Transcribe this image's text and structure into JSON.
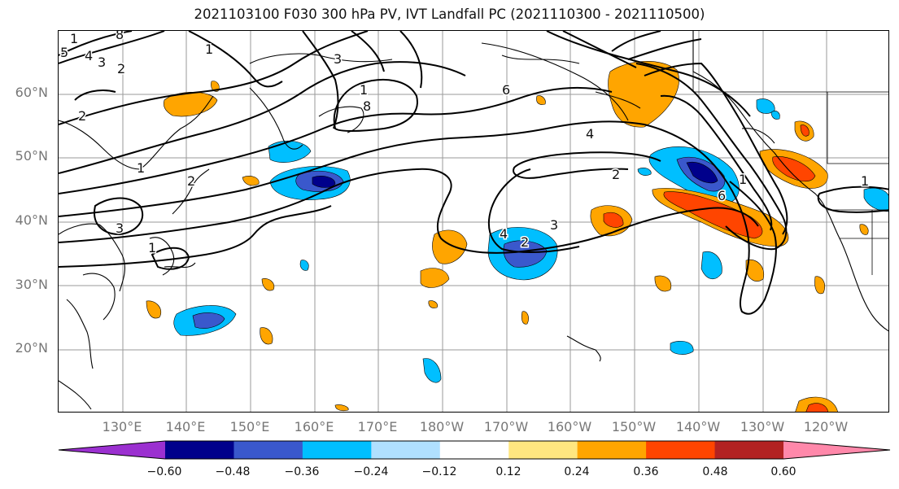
{
  "title": "2021103100 F030 300 hPa PV, IVT Landfall PC (2021110300 - 2021110500)",
  "lat_labels": [
    "60°N",
    "50°N",
    "40°N",
    "30°N",
    "20°N"
  ],
  "lon_labels": [
    "130°E",
    "140°E",
    "150°E",
    "160°E",
    "170°E",
    "180°W",
    "170°W",
    "160°W",
    "150°W",
    "140°W",
    "130°W",
    "120°W"
  ],
  "colorbar": {
    "tick_labels": [
      "−0.60",
      "−0.48",
      "−0.36",
      "−0.24",
      "−0.12",
      "0.12",
      "0.24",
      "0.36",
      "0.48",
      "0.60"
    ],
    "colors": [
      "#9b30d0",
      "#00008b",
      "#3a58cc",
      "#00bfff",
      "#b0e0ff",
      "#ffffff",
      "#ffe680",
      "#ffa500",
      "#ff4500",
      "#b22222",
      "#ff88aa"
    ]
  },
  "contour_labels": [
    "1",
    "8",
    "5",
    "4",
    "3",
    "2",
    "3",
    "1",
    "8",
    "2",
    "6",
    "4",
    "1",
    "2",
    "1",
    "3",
    "1",
    "2",
    "4",
    "2",
    "3",
    "1",
    "6",
    "1"
  ]
}
